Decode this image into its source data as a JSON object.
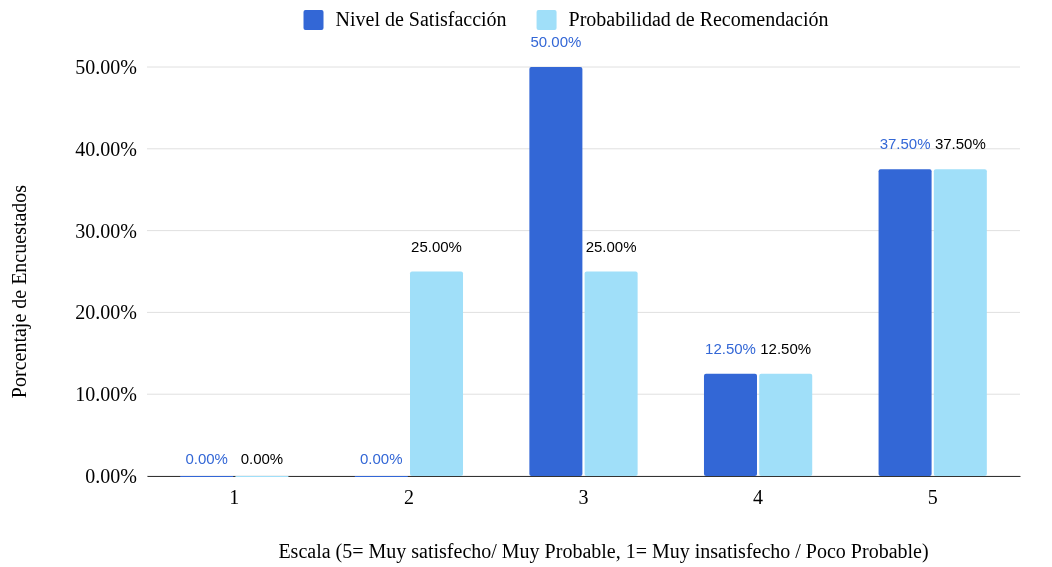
{
  "chart_data": {
    "type": "bar",
    "xlabel": "Escala (5= Muy satisfecho/ Muy Probable, 1= Muy insatisfecho / Poco Probable)",
    "ylabel": "Porcentaje de Encuestados",
    "categories": [
      "1",
      "2",
      "3",
      "4",
      "5"
    ],
    "series": [
      {
        "name": "Nivel de Satisfacción",
        "color": "#3367d6",
        "values": [
          0,
          0,
          50,
          12.5,
          37.5
        ],
        "value_labels": [
          "0.00%",
          "0.00%",
          "50.00%",
          "12.50%",
          "37.50%"
        ]
      },
      {
        "name": "Probabilidad de Recomendación",
        "color": "#a0dff9",
        "values": [
          0,
          25,
          25,
          12.5,
          37.5
        ],
        "value_labels": [
          "0.00%",
          "25.00%",
          "25.00%",
          "12.50%",
          "37.50%"
        ]
      }
    ],
    "ylim": [
      0,
      50
    ],
    "yticks": [
      {
        "value": 0,
        "label": "0.00%"
      },
      {
        "value": 10,
        "label": "10.00%"
      },
      {
        "value": 20,
        "label": "20.00%"
      },
      {
        "value": 30,
        "label": "30.00%"
      },
      {
        "value": 40,
        "label": "40.00%"
      },
      {
        "value": 50,
        "label": "50.00%"
      }
    ],
    "grid": "y",
    "legend": "top"
  }
}
